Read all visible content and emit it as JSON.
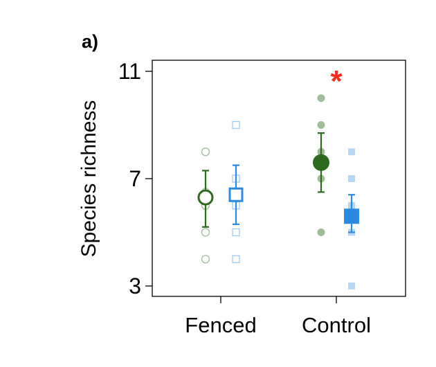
{
  "panel_label": "a)",
  "chart_data": {
    "type": "scatter",
    "ylabel": "Species richness",
    "xlabel": "",
    "categories": [
      "Fenced",
      "Control"
    ],
    "ylim": [
      2.6,
      11.4
    ],
    "yticks": [
      3,
      7,
      11
    ],
    "grid": false,
    "legend": "none",
    "annotations": [
      {
        "text": "*",
        "category": "Control",
        "color": "#ff2a1a"
      }
    ],
    "series": [
      {
        "color": "#2d6a1e",
        "marker": "circle",
        "groups": [
          {
            "category": "Fenced",
            "filled": false,
            "mean": 6.3,
            "ci": [
              5.2,
              7.3
            ],
            "points": [
              8,
              6.5,
              6.0,
              5.0,
              4.0
            ]
          },
          {
            "category": "Control",
            "filled": true,
            "mean": 7.6,
            "ci": [
              6.5,
              8.7
            ],
            "points": [
              10,
              9,
              8,
              7.5,
              7,
              5.0
            ]
          }
        ]
      },
      {
        "color": "#2b8be0",
        "marker": "square",
        "groups": [
          {
            "category": "Fenced",
            "filled": false,
            "mean": 6.4,
            "ci": [
              5.3,
              7.5
            ],
            "points": [
              9,
              7,
              6.5,
              6.0,
              5.0,
              4.0
            ]
          },
          {
            "category": "Control",
            "filled": true,
            "mean": 5.6,
            "ci": [
              5.0,
              6.4
            ],
            "points": [
              8,
              7,
              6.0,
              5.6,
              5.0,
              3.0
            ]
          }
        ]
      }
    ]
  }
}
